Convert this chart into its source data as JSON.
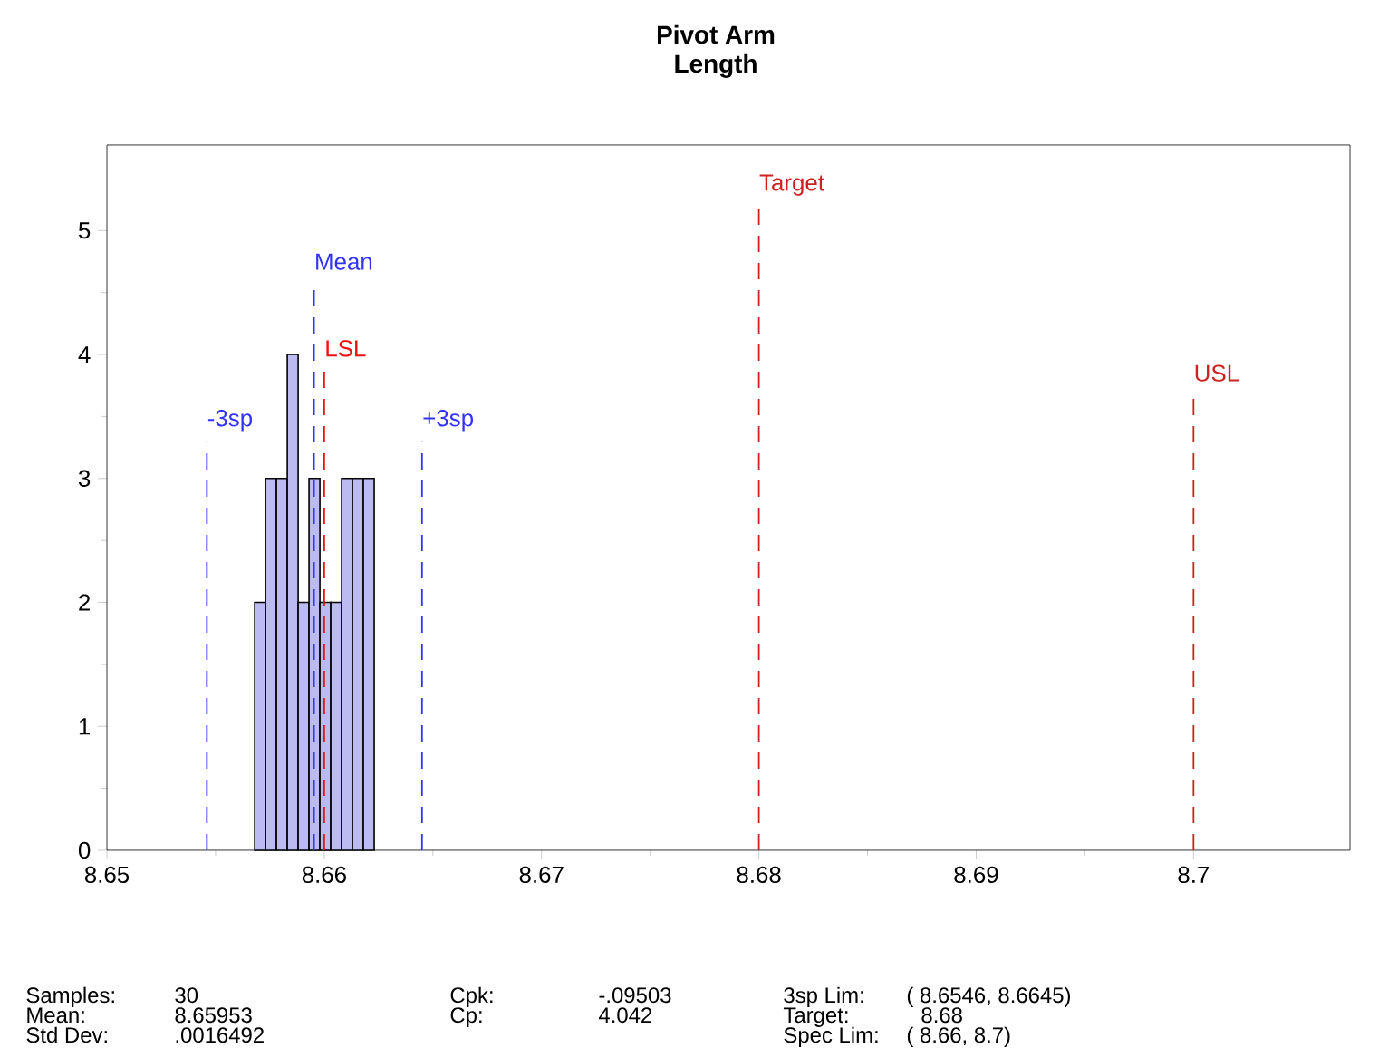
{
  "chart_data": {
    "type": "histogram",
    "title": "Pivot Arm",
    "subtitle": "Length",
    "bins": [
      8.6568,
      8.6573,
      8.6578,
      8.6583,
      8.6588,
      8.6593,
      8.6598,
      8.6603,
      8.6608,
      8.6613,
      8.6618,
      8.6623
    ],
    "values": [
      2,
      3,
      3,
      4,
      2,
      3,
      2,
      2,
      3,
      3,
      3
    ],
    "color": "#bbbbf2",
    "xlim": [
      8.65,
      8.7072
    ],
    "xticks": [
      8.65,
      8.66,
      8.67,
      8.68,
      8.69,
      8.7
    ],
    "ylim": [
      0,
      5.69
    ],
    "yticks": [
      0,
      1,
      2,
      3,
      4,
      5
    ],
    "grid": false,
    "ref_lines": [
      {
        "axis": "x",
        "value": 8.6546,
        "label": "-3sp",
        "color": "#3333ff",
        "line_style": "dashed"
      },
      {
        "axis": "x",
        "value": 8.65953,
        "label": "Mean",
        "color": "#3333ff",
        "line_style": "dashed"
      },
      {
        "axis": "x",
        "value": 8.66,
        "label": "LSL",
        "color": "#ee1111",
        "line_style": "dashed"
      },
      {
        "axis": "x",
        "value": 8.6645,
        "label": "+3sp",
        "color": "#3333ff",
        "line_style": "dashed"
      },
      {
        "axis": "x",
        "value": 8.68,
        "label": "Target",
        "color": "#cc2222",
        "line_style": "dashed"
      },
      {
        "axis": "x",
        "value": 8.7,
        "label": "USL",
        "color": "#cc2222",
        "line_style": "dashed"
      }
    ],
    "annotations": [
      "Samples:",
      "30",
      "Cpk:",
      "-.09503",
      "3sp Lim:",
      "( 8.6546,   8.6645)",
      "Mean:",
      "8.65953",
      "Cp:",
      "4.042",
      "Target:",
      "8.68",
      "Std Dev:",
      ".0016492",
      "Spec Lim:",
      "( 8.66,   8.7)"
    ]
  }
}
